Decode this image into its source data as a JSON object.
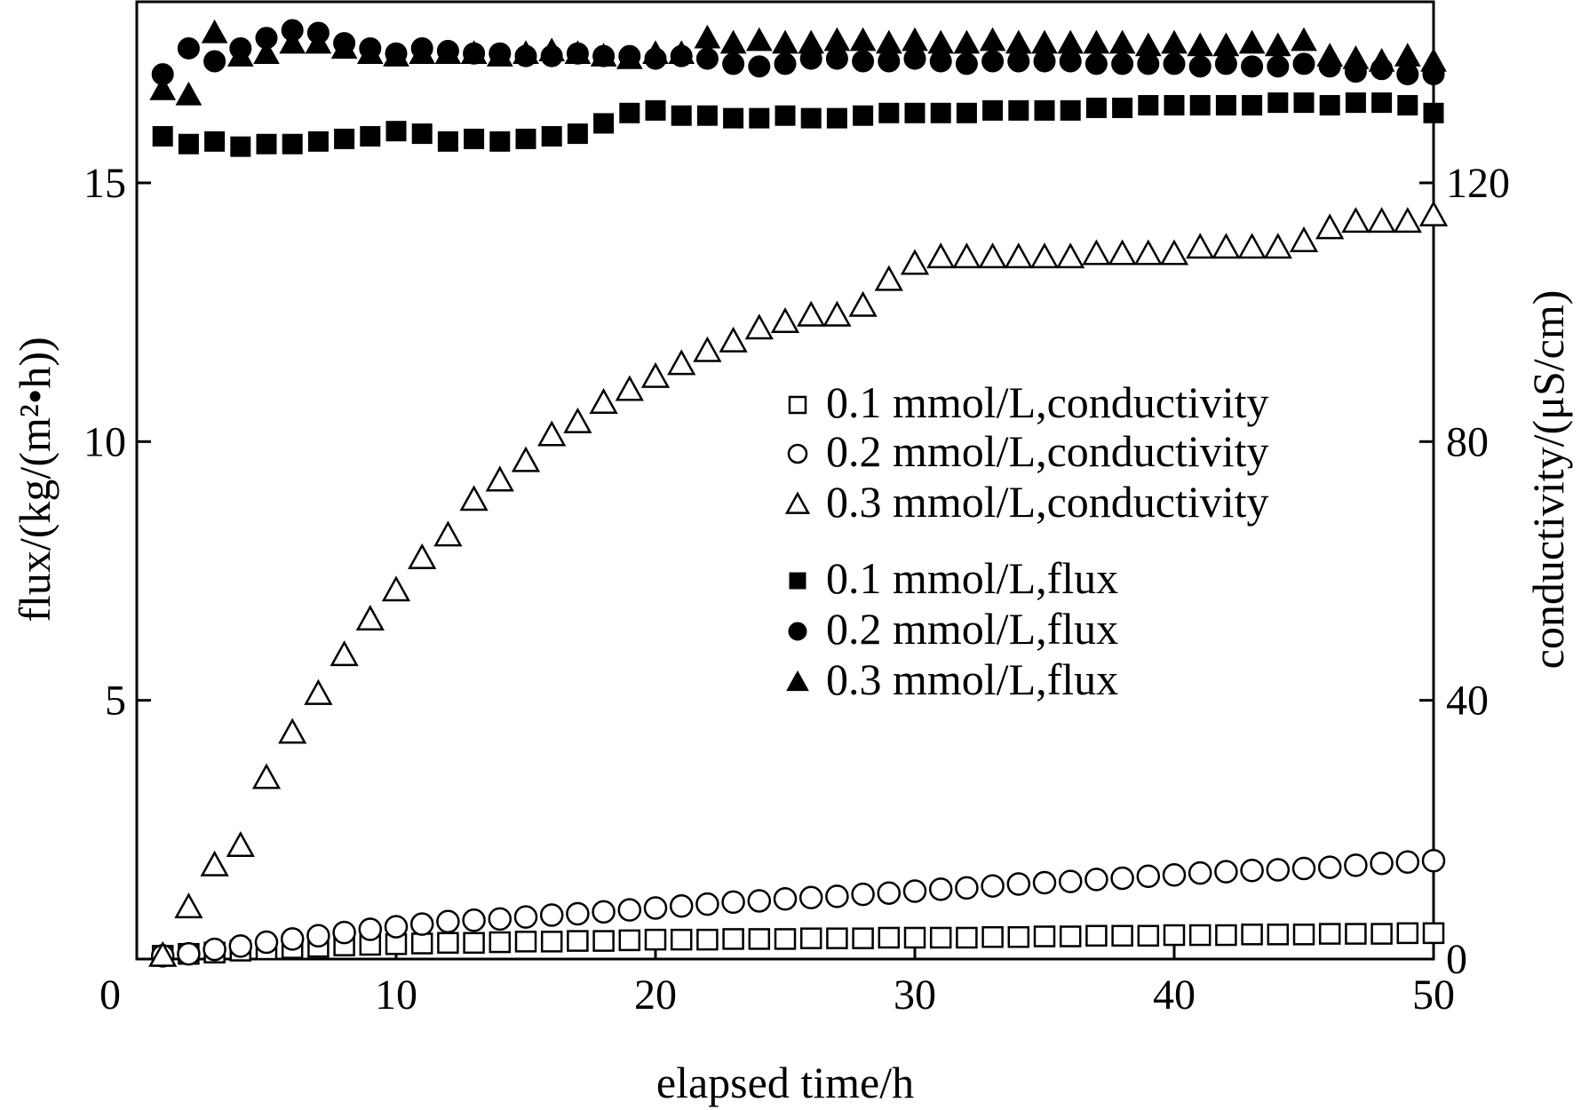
{
  "chart_data": {
    "type": "scatter",
    "title": "",
    "xlabel": "elapsed time/h",
    "ylabel_left": "flux/(kg/(m²•h))",
    "ylabel_right": "conductivity/(μS/cm)",
    "xlim": [
      0,
      50
    ],
    "ylim_left": [
      0,
      18.5
    ],
    "ylim_right": [
      0,
      148
    ],
    "x_ticks": [
      "0",
      "10",
      "20",
      "30",
      "40",
      "50"
    ],
    "y_left_ticks": [
      "5",
      "10",
      "15"
    ],
    "y_right_ticks": [
      "0",
      "40",
      "80",
      "120"
    ],
    "grid": false,
    "legend_position": "center-right",
    "series": [
      {
        "name": "0.1 mmol/L,conductivity",
        "axis": "right",
        "marker": "square-open",
        "x": [
          1,
          2,
          3,
          4,
          5,
          6,
          7,
          8,
          9,
          10,
          11,
          12,
          13,
          14,
          15,
          16,
          17,
          18,
          19,
          20,
          21,
          22,
          23,
          24,
          25,
          26,
          27,
          28,
          29,
          30,
          31,
          32,
          33,
          34,
          35,
          36,
          37,
          38,
          39,
          40,
          41,
          42,
          43,
          44,
          45,
          46,
          47,
          48,
          49,
          50
        ],
        "values": [
          0.5,
          0.8,
          1,
          1.3,
          1.5,
          1.7,
          1.9,
          2.1,
          2.2,
          2.3,
          2.4,
          2.5,
          2.5,
          2.6,
          2.7,
          2.7,
          2.8,
          2.8,
          2.9,
          3,
          3,
          3,
          3.1,
          3.1,
          3.1,
          3.2,
          3.2,
          3.2,
          3.3,
          3.3,
          3.3,
          3.3,
          3.4,
          3.4,
          3.5,
          3.5,
          3.6,
          3.6,
          3.6,
          3.7,
          3.7,
          3.7,
          3.8,
          3.8,
          3.8,
          3.9,
          3.9,
          3.9,
          4,
          4
        ]
      },
      {
        "name": "0.2 mmol/L,conductivity",
        "axis": "right",
        "marker": "circle-open",
        "x": [
          1,
          2,
          3,
          4,
          5,
          6,
          7,
          8,
          9,
          10,
          11,
          12,
          13,
          14,
          15,
          16,
          17,
          18,
          19,
          20,
          21,
          22,
          23,
          24,
          25,
          26,
          27,
          28,
          29,
          30,
          31,
          32,
          33,
          34,
          35,
          36,
          37,
          38,
          39,
          40,
          41,
          42,
          43,
          44,
          45,
          46,
          47,
          48,
          49,
          50
        ],
        "values": [
          0.5,
          0.8,
          1.5,
          2,
          2.6,
          3.1,
          3.6,
          4.1,
          4.6,
          5,
          5.4,
          5.8,
          6,
          6.2,
          6.5,
          6.8,
          7,
          7.3,
          7.6,
          7.9,
          8.2,
          8.5,
          8.8,
          9,
          9.3,
          9.5,
          9.7,
          10,
          10.2,
          10.5,
          10.8,
          11,
          11.3,
          11.6,
          11.8,
          12,
          12.3,
          12.5,
          12.8,
          13,
          13.3,
          13.5,
          13.7,
          13.8,
          14,
          14.2,
          14.5,
          14.8,
          15,
          15.2
        ]
      },
      {
        "name": "0.3 mmol/L,conductivity",
        "axis": "right",
        "marker": "triangle-open",
        "x": [
          1,
          2,
          3,
          4,
          5,
          6,
          7,
          8,
          9,
          10,
          11,
          12,
          13,
          14,
          15,
          16,
          17,
          18,
          19,
          20,
          21,
          22,
          23,
          24,
          25,
          26,
          27,
          28,
          29,
          30,
          31,
          32,
          33,
          34,
          35,
          36,
          37,
          38,
          39,
          40,
          41,
          42,
          43,
          44,
          45,
          46,
          47,
          48,
          49,
          50
        ],
        "values": [
          0.5,
          8,
          14.5,
          17.5,
          28,
          35,
          41,
          47,
          52.5,
          57,
          62,
          65.5,
          71,
          74,
          77,
          81,
          83,
          86,
          88,
          90,
          92,
          94,
          95.5,
          97.5,
          98.5,
          99.5,
          99.5,
          101,
          105,
          107.5,
          108.5,
          108.5,
          108.5,
          108.5,
          108.5,
          108.5,
          109,
          109,
          109,
          109,
          110,
          110,
          110,
          110,
          111,
          113,
          114,
          114,
          114,
          115
        ]
      },
      {
        "name": "0.1 mmol/L,flux",
        "axis": "left",
        "marker": "square-filled",
        "x": [
          1,
          2,
          3,
          4,
          5,
          6,
          7,
          8,
          9,
          10,
          11,
          12,
          13,
          14,
          15,
          16,
          17,
          18,
          19,
          20,
          21,
          22,
          23,
          24,
          25,
          26,
          27,
          28,
          29,
          30,
          31,
          32,
          33,
          34,
          35,
          36,
          37,
          38,
          39,
          40,
          41,
          42,
          43,
          44,
          45,
          46,
          47,
          48,
          49,
          50
        ],
        "values": [
          15.9,
          15.75,
          15.8,
          15.7,
          15.75,
          15.75,
          15.8,
          15.85,
          15.9,
          16,
          15.95,
          15.8,
          15.85,
          15.8,
          15.85,
          15.9,
          15.95,
          16.15,
          16.35,
          16.4,
          16.3,
          16.3,
          16.25,
          16.25,
          16.3,
          16.25,
          16.25,
          16.3,
          16.35,
          16.35,
          16.35,
          16.35,
          16.4,
          16.4,
          16.4,
          16.4,
          16.45,
          16.45,
          16.5,
          16.5,
          16.5,
          16.5,
          16.5,
          16.55,
          16.55,
          16.5,
          16.55,
          16.55,
          16.5,
          16.35
        ]
      },
      {
        "name": "0.2 mmol/L,flux",
        "axis": "left",
        "marker": "circle-filled",
        "x": [
          1,
          2,
          3,
          4,
          5,
          6,
          7,
          8,
          9,
          10,
          11,
          12,
          13,
          14,
          15,
          16,
          17,
          18,
          19,
          20,
          21,
          22,
          23,
          24,
          25,
          26,
          27,
          28,
          29,
          30,
          31,
          32,
          33,
          34,
          35,
          36,
          37,
          38,
          39,
          40,
          41,
          42,
          43,
          44,
          45,
          46,
          47,
          48,
          49,
          50
        ],
        "values": [
          17.1,
          17.6,
          17.35,
          17.6,
          17.8,
          17.95,
          17.9,
          17.7,
          17.6,
          17.5,
          17.6,
          17.55,
          17.5,
          17.5,
          17.45,
          17.45,
          17.5,
          17.45,
          17.45,
          17.4,
          17.45,
          17.4,
          17.3,
          17.25,
          17.3,
          17.4,
          17.4,
          17.35,
          17.35,
          17.4,
          17.35,
          17.3,
          17.35,
          17.35,
          17.35,
          17.35,
          17.3,
          17.3,
          17.3,
          17.3,
          17.25,
          17.3,
          17.25,
          17.25,
          17.3,
          17.25,
          17.15,
          17.2,
          17.1,
          17.1
        ]
      },
      {
        "name": "0.3 mmol/L,flux",
        "axis": "left",
        "marker": "triangle-filled",
        "x": [
          1,
          2,
          3,
          4,
          5,
          6,
          7,
          8,
          9,
          10,
          11,
          12,
          13,
          14,
          15,
          16,
          17,
          18,
          19,
          20,
          21,
          22,
          23,
          24,
          25,
          26,
          27,
          28,
          29,
          30,
          31,
          32,
          33,
          34,
          35,
          36,
          37,
          38,
          39,
          40,
          41,
          42,
          43,
          44,
          45,
          46,
          47,
          48,
          49,
          50
        ],
        "values": [
          16.8,
          16.7,
          17.9,
          17.45,
          17.5,
          17.7,
          17.7,
          17.6,
          17.5,
          17.45,
          17.5,
          17.5,
          17.5,
          17.45,
          17.5,
          17.55,
          17.5,
          17.45,
          17.4,
          17.5,
          17.5,
          17.8,
          17.7,
          17.75,
          17.7,
          17.7,
          17.75,
          17.75,
          17.7,
          17.75,
          17.7,
          17.7,
          17.75,
          17.7,
          17.7,
          17.7,
          17.7,
          17.7,
          17.65,
          17.7,
          17.65,
          17.65,
          17.7,
          17.65,
          17.75,
          17.45,
          17.4,
          17.35,
          17.45,
          17.35
        ]
      }
    ]
  }
}
